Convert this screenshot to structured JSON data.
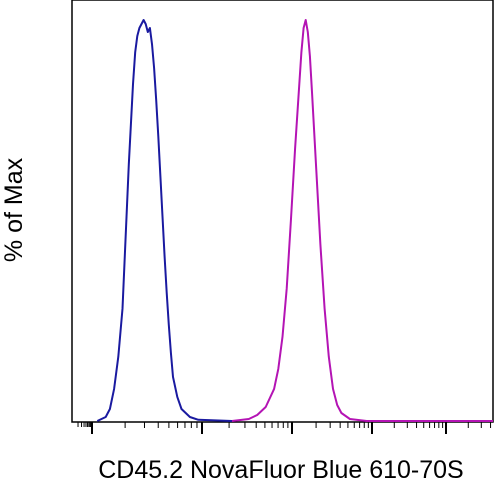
{
  "chart_data": {
    "type": "line",
    "xlabel": "CD45.2 NovaFluor Blue 610-70S",
    "ylabel": "% of Max",
    "xlim": [
      0,
      1
    ],
    "ylim": [
      0,
      100
    ],
    "grid": false,
    "legend": "none",
    "series": [
      {
        "color": "#1a1aa0",
        "points": [
          [
            0.06,
            0
          ],
          [
            0.08,
            1
          ],
          [
            0.09,
            3
          ],
          [
            0.1,
            8
          ],
          [
            0.11,
            16
          ],
          [
            0.12,
            28
          ],
          [
            0.125,
            40
          ],
          [
            0.13,
            52
          ],
          [
            0.135,
            64
          ],
          [
            0.14,
            74
          ],
          [
            0.145,
            84
          ],
          [
            0.15,
            92
          ],
          [
            0.155,
            96
          ],
          [
            0.16,
            98
          ],
          [
            0.165,
            99
          ],
          [
            0.17,
            100
          ],
          [
            0.175,
            99
          ],
          [
            0.18,
            97
          ],
          [
            0.185,
            98
          ],
          [
            0.19,
            94
          ],
          [
            0.195,
            88
          ],
          [
            0.2,
            80
          ],
          [
            0.205,
            71
          ],
          [
            0.21,
            61
          ],
          [
            0.215,
            51
          ],
          [
            0.22,
            41
          ],
          [
            0.225,
            32
          ],
          [
            0.23,
            24
          ],
          [
            0.235,
            17
          ],
          [
            0.24,
            11
          ],
          [
            0.25,
            6
          ],
          [
            0.26,
            3
          ],
          [
            0.28,
            1
          ],
          [
            0.3,
            0.3
          ],
          [
            0.38,
            0
          ]
        ]
      },
      {
        "color": "#b414b4",
        "points": [
          [
            0.38,
            0
          ],
          [
            0.42,
            0.5
          ],
          [
            0.44,
            1.5
          ],
          [
            0.46,
            3.5
          ],
          [
            0.48,
            8
          ],
          [
            0.49,
            13
          ],
          [
            0.5,
            21
          ],
          [
            0.51,
            33
          ],
          [
            0.52,
            50
          ],
          [
            0.53,
            68
          ],
          [
            0.54,
            84
          ],
          [
            0.545,
            92
          ],
          [
            0.55,
            98
          ],
          [
            0.555,
            100
          ],
          [
            0.56,
            97
          ],
          [
            0.565,
            91
          ],
          [
            0.57,
            82
          ],
          [
            0.58,
            63
          ],
          [
            0.59,
            44
          ],
          [
            0.6,
            28
          ],
          [
            0.61,
            16
          ],
          [
            0.62,
            8
          ],
          [
            0.63,
            4
          ],
          [
            0.64,
            2
          ],
          [
            0.66,
            0.5
          ],
          [
            0.7,
            0
          ],
          [
            1.0,
            0
          ]
        ]
      }
    ]
  }
}
